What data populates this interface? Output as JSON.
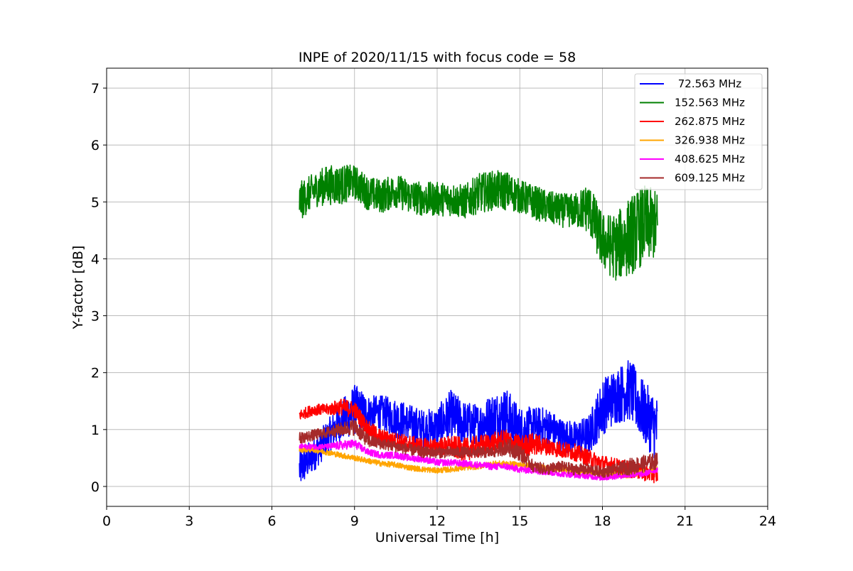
{
  "chart_data": {
    "type": "line",
    "title": "INPE of 2020/11/15 with focus code = 58",
    "xlabel": "Universal Time [h]",
    "ylabel": "Y-factor [dB]",
    "xlim": [
      0,
      24
    ],
    "ylim": [
      -0.35,
      7.35
    ],
    "xticks": [
      0,
      3,
      6,
      9,
      12,
      15,
      18,
      21,
      24
    ],
    "xtick_labels": [
      "0",
      "3",
      "6",
      "9",
      "12",
      "15",
      "18",
      "21",
      "24"
    ],
    "yticks": [
      0,
      1,
      2,
      3,
      4,
      5,
      6,
      7
    ],
    "ytick_labels": [
      "0",
      "1",
      "2",
      "3",
      "4",
      "5",
      "6",
      "7"
    ],
    "grid": true,
    "legend_position": "top-right",
    "series": [
      {
        "name": " 72.563 MHz",
        "color": "#0000ff",
        "x": [
          7.0,
          7.5,
          8.0,
          8.5,
          9.0,
          9.5,
          10.0,
          10.5,
          11.0,
          11.5,
          12.0,
          12.5,
          13.0,
          13.5,
          14.0,
          14.5,
          15.0,
          15.5,
          16.0,
          16.5,
          17.0,
          17.5,
          18.0,
          18.5,
          19.0,
          19.5,
          20.0
        ],
        "y": [
          0.3,
          0.55,
          0.85,
          1.15,
          1.35,
          1.3,
          1.3,
          1.2,
          1.1,
          1.0,
          1.05,
          1.25,
          1.1,
          1.1,
          1.2,
          1.25,
          1.0,
          1.05,
          1.05,
          0.9,
          0.85,
          0.9,
          1.4,
          1.6,
          1.7,
          1.3,
          1.0
        ],
        "spread": [
          0.35,
          0.3,
          0.3,
          0.35,
          0.45,
          0.3,
          0.3,
          0.35,
          0.35,
          0.35,
          0.35,
          0.45,
          0.4,
          0.35,
          0.45,
          0.5,
          0.4,
          0.35,
          0.35,
          0.3,
          0.3,
          0.35,
          0.5,
          0.5,
          0.55,
          0.55,
          0.6
        ]
      },
      {
        "name": "152.563 MHz",
        "color": "#008000",
        "x": [
          7.0,
          7.5,
          8.0,
          8.5,
          9.0,
          9.5,
          10.0,
          10.5,
          11.0,
          11.5,
          12.0,
          12.5,
          13.0,
          13.5,
          14.0,
          14.5,
          15.0,
          15.5,
          16.0,
          16.5,
          17.0,
          17.5,
          18.0,
          18.5,
          19.0,
          19.5,
          20.0
        ],
        "y": [
          5.0,
          5.2,
          5.3,
          5.3,
          5.35,
          5.15,
          5.1,
          5.2,
          5.1,
          5.05,
          5.05,
          5.05,
          5.0,
          5.15,
          5.2,
          5.2,
          5.1,
          5.0,
          4.9,
          4.85,
          4.85,
          4.9,
          4.3,
          4.2,
          4.4,
          4.6,
          4.6
        ],
        "spread": [
          0.35,
          0.3,
          0.35,
          0.35,
          0.3,
          0.3,
          0.3,
          0.3,
          0.3,
          0.3,
          0.3,
          0.3,
          0.3,
          0.35,
          0.35,
          0.35,
          0.3,
          0.3,
          0.3,
          0.3,
          0.3,
          0.45,
          0.5,
          0.6,
          0.7,
          0.7,
          0.6
        ]
      },
      {
        "name": "262.875 MHz",
        "color": "#ff0000",
        "x": [
          7.0,
          7.5,
          8.0,
          8.5,
          9.0,
          9.5,
          10.0,
          10.5,
          11.0,
          11.5,
          12.0,
          12.5,
          13.0,
          13.5,
          14.0,
          14.5,
          15.0,
          15.5,
          16.0,
          16.5,
          17.0,
          17.5,
          18.0,
          18.5,
          19.0,
          19.5,
          20.0
        ],
        "y": [
          1.25,
          1.35,
          1.35,
          1.4,
          1.35,
          1.0,
          0.85,
          0.8,
          0.75,
          0.7,
          0.7,
          0.7,
          0.65,
          0.7,
          0.75,
          0.8,
          0.7,
          0.75,
          0.7,
          0.65,
          0.6,
          0.5,
          0.4,
          0.35,
          0.3,
          0.25,
          0.2
        ],
        "spread": [
          0.1,
          0.1,
          0.1,
          0.15,
          0.15,
          0.15,
          0.15,
          0.15,
          0.15,
          0.15,
          0.15,
          0.2,
          0.2,
          0.2,
          0.2,
          0.2,
          0.2,
          0.2,
          0.15,
          0.15,
          0.15,
          0.15,
          0.15,
          0.15,
          0.15,
          0.15,
          0.15
        ]
      },
      {
        "name": "326.938 MHz",
        "color": "#ffa500",
        "x": [
          7.0,
          7.5,
          8.0,
          8.5,
          9.0,
          9.5,
          10.0,
          10.5,
          11.0,
          11.5,
          12.0,
          12.5,
          13.0,
          13.5,
          14.0,
          14.5,
          15.0,
          15.5,
          16.0,
          16.5,
          17.0,
          17.5,
          18.0,
          18.5,
          19.0,
          19.5,
          20.0
        ],
        "y": [
          0.65,
          0.65,
          0.6,
          0.55,
          0.5,
          0.45,
          0.4,
          0.38,
          0.33,
          0.3,
          0.28,
          0.3,
          0.33,
          0.35,
          0.4,
          0.4,
          0.38,
          0.35,
          0.33,
          0.3,
          0.28,
          0.25,
          0.22,
          0.2,
          0.2,
          0.25,
          0.3
        ],
        "spread": [
          0.05,
          0.05,
          0.05,
          0.05,
          0.05,
          0.05,
          0.05,
          0.05,
          0.05,
          0.05,
          0.05,
          0.05,
          0.05,
          0.05,
          0.05,
          0.05,
          0.05,
          0.05,
          0.05,
          0.05,
          0.05,
          0.05,
          0.05,
          0.05,
          0.05,
          0.05,
          0.05
        ]
      },
      {
        "name": "408.625 MHz",
        "color": "#ff00ff",
        "x": [
          7.0,
          7.5,
          8.0,
          8.5,
          9.0,
          9.5,
          10.0,
          10.5,
          11.0,
          11.5,
          12.0,
          12.5,
          13.0,
          13.5,
          14.0,
          14.5,
          15.0,
          15.5,
          16.0,
          16.5,
          17.0,
          17.5,
          18.0,
          18.5,
          19.0,
          19.5,
          20.0
        ],
        "y": [
          0.7,
          0.7,
          0.7,
          0.72,
          0.75,
          0.6,
          0.55,
          0.55,
          0.5,
          0.48,
          0.42,
          0.42,
          0.4,
          0.38,
          0.35,
          0.35,
          0.3,
          0.28,
          0.25,
          0.22,
          0.2,
          0.18,
          0.15,
          0.18,
          0.2,
          0.22,
          0.3
        ],
        "spread": [
          0.05,
          0.05,
          0.05,
          0.08,
          0.08,
          0.06,
          0.06,
          0.06,
          0.06,
          0.06,
          0.06,
          0.06,
          0.06,
          0.06,
          0.06,
          0.06,
          0.06,
          0.06,
          0.05,
          0.05,
          0.05,
          0.05,
          0.05,
          0.05,
          0.05,
          0.05,
          0.05
        ]
      },
      {
        "name": "609.125 MHz",
        "color": "#a52a2a",
        "x": [
          7.0,
          7.5,
          8.0,
          8.5,
          9.0,
          9.5,
          10.0,
          10.5,
          11.0,
          11.5,
          12.0,
          12.5,
          13.0,
          13.5,
          14.0,
          14.5,
          15.0,
          15.5,
          16.0,
          16.5,
          17.0,
          17.5,
          18.0,
          18.5,
          19.0,
          19.5,
          20.0
        ],
        "y": [
          0.85,
          0.9,
          0.95,
          1.0,
          1.05,
          0.8,
          0.75,
          0.7,
          0.65,
          0.6,
          0.6,
          0.6,
          0.6,
          0.6,
          0.6,
          0.7,
          0.6,
          0.35,
          0.3,
          0.35,
          0.3,
          0.3,
          0.25,
          0.3,
          0.35,
          0.4,
          0.45
        ],
        "spread": [
          0.1,
          0.1,
          0.1,
          0.12,
          0.15,
          0.12,
          0.1,
          0.1,
          0.1,
          0.1,
          0.1,
          0.1,
          0.1,
          0.1,
          0.1,
          0.15,
          0.15,
          0.1,
          0.1,
          0.1,
          0.1,
          0.1,
          0.1,
          0.1,
          0.15,
          0.15,
          0.15
        ]
      }
    ]
  }
}
